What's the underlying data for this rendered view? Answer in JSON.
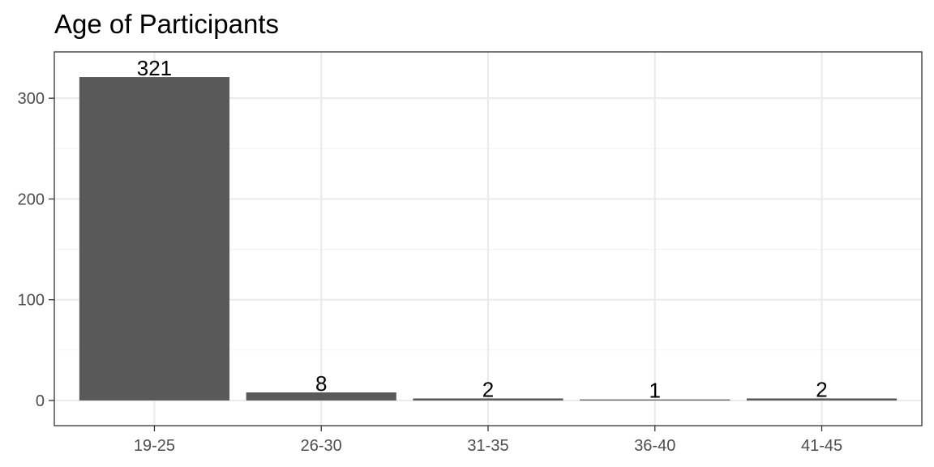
{
  "chart_data": {
    "type": "bar",
    "title": "Age of Participants",
    "xlabel": "",
    "ylabel": "",
    "categories": [
      "19-25",
      "26-30",
      "31-35",
      "36-40",
      "41-45"
    ],
    "values": [
      321,
      8,
      2,
      1,
      2
    ],
    "data_labels": [
      "321",
      "8",
      "2",
      "1",
      "2"
    ],
    "ylim": [
      -25,
      346
    ],
    "yticks": [
      0,
      100,
      200,
      300
    ],
    "ytick_labels": [
      "0",
      "100",
      "200",
      "300"
    ],
    "grid": true,
    "legend": "none",
    "colors": {
      "bar": "#595959",
      "grid_major": "#ebebeb",
      "grid_minor": "#f5f5f5",
      "panel_border": "#333333",
      "tick_text": "#4d4d4d"
    }
  }
}
